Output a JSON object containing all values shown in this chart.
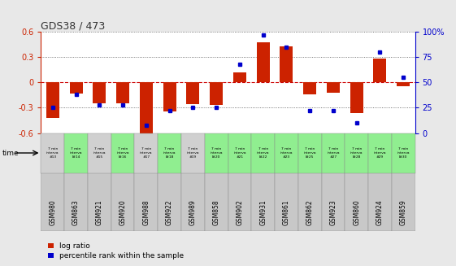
{
  "title": "GDS38 / 473",
  "gsm_labels": [
    "GSM980",
    "GSM863",
    "GSM921",
    "GSM920",
    "GSM988",
    "GSM922",
    "GSM989",
    "GSM858",
    "GSM902",
    "GSM931",
    "GSM861",
    "GSM862",
    "GSM923",
    "GSM860",
    "GSM924",
    "GSM859"
  ],
  "time_labels": [
    "7 min\ninterva\n#13",
    "7 min\ninterva\nl#14",
    "7 min\ninterva\n#15",
    "7 min\ninterva\nl#16",
    "7 min\ninterva\n#17",
    "7 min\ninterva\nl#18",
    "7 min\ninterva\n#19",
    "7 min\ninterva\nl#20",
    "7 min\ninterva\n#21",
    "7 min\ninterva\nl#22",
    "7 min\ninterva\n#23",
    "7 min\ninterva\nl#25",
    "7 min\ninterva\n#27",
    "7 min\ninterva\nl#28",
    "7 min\ninterva\n#29",
    "7 min\ninterva\nl#30"
  ],
  "time_cell_colors": [
    "#d0d0d0",
    "#90ee90",
    "#d0d0d0",
    "#90ee90",
    "#d0d0d0",
    "#90ee90",
    "#d0d0d0",
    "#90ee90",
    "#90ee90",
    "#90ee90",
    "#90ee90",
    "#90ee90",
    "#90ee90",
    "#90ee90",
    "#90ee90",
    "#90ee90"
  ],
  "log_ratio": [
    -0.42,
    -0.13,
    -0.25,
    -0.25,
    -0.62,
    -0.34,
    -0.26,
    -0.27,
    0.12,
    0.48,
    0.43,
    -0.14,
    -0.12,
    -0.36,
    0.28,
    -0.04
  ],
  "percentile": [
    25,
    38,
    28,
    28,
    8,
    22,
    25,
    25,
    68,
    97,
    85,
    22,
    22,
    10,
    80,
    55
  ],
  "ylim": [
    -0.6,
    0.6
  ],
  "y2lim": [
    0,
    100
  ],
  "yticks": [
    -0.6,
    -0.3,
    0.0,
    0.3,
    0.6
  ],
  "ytick_labels": [
    "-0.6",
    "-0.3",
    "0",
    "0.3",
    "0.6"
  ],
  "y2ticks": [
    0,
    25,
    50,
    75,
    100
  ],
  "y2tick_labels": [
    "0",
    "25",
    "50",
    "75",
    "100%"
  ],
  "bar_color": "#cc2200",
  "dot_color": "#0000cc",
  "bg_color": "#e8e8e8",
  "plot_bg": "#ffffff",
  "time_bg_gray": "#c8c8c8",
  "time_bg_green": "#90ee90",
  "grid_dotted_color": "#555555",
  "zero_line_color": "#cc0000",
  "title_color": "#333333",
  "bar_width": 0.55,
  "legend_red_label": "log ratio",
  "legend_blue_label": "percentile rank within the sample"
}
